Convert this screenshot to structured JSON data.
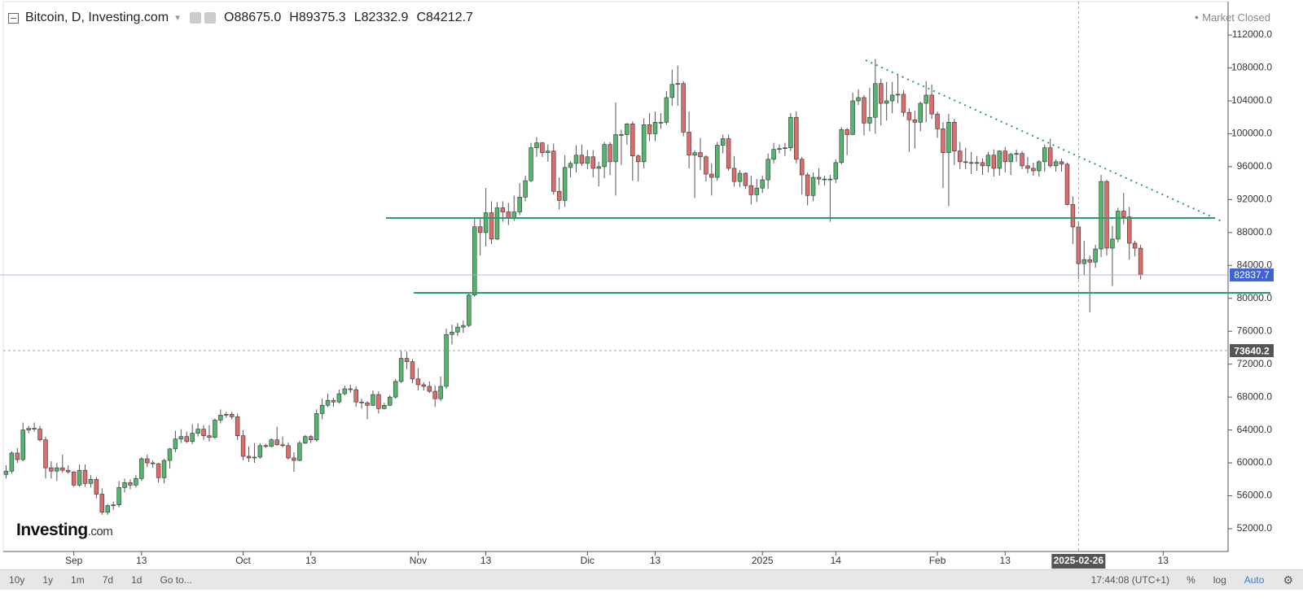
{
  "header": {
    "title": "Bitcoin, D, Investing.com",
    "ohlc": [
      {
        "key": "O",
        "value": "88675.0"
      },
      {
        "key": "H",
        "value": "89375.3"
      },
      {
        "key": "L",
        "value": "82332.9"
      },
      {
        "key": "C",
        "value": "84212.7"
      }
    ],
    "status": "Market Closed"
  },
  "logo": {
    "brand": "Investing",
    "suffix": ".com"
  },
  "toolbar": {
    "ranges": [
      "10y",
      "1y",
      "1m",
      "7d",
      "1d"
    ],
    "goto": "Go to...",
    "time": "17:44:08 (UTC+1)",
    "options": [
      "%",
      "log",
      "Auto"
    ]
  },
  "chart_data": {
    "type": "candlestick",
    "colors": {
      "up": "#52b66d",
      "down": "#e06b6b",
      "wick": "#555555"
    },
    "grid": false,
    "open": [
      58600,
      59000,
      61200,
      60400,
      64000,
      64200,
      64100,
      62800,
      59400,
      59000,
      59400,
      59100,
      58900,
      57300,
      59100,
      57500,
      58000,
      56200,
      54000,
      54800,
      54900,
      57000,
      57600,
      57300,
      58100,
      60500,
      60000,
      59900,
      58200,
      60300,
      61700,
      62900,
      63200,
      62600,
      63600,
      64100,
      63300,
      63100,
      65200,
      65800,
      65900,
      65600,
      63300,
      60800,
      60600,
      60700,
      62100,
      62000,
      62800,
      62200,
      62100,
      60600,
      60300,
      62400,
      63200,
      62800,
      66000,
      67000,
      67600,
      67400,
      68400,
      69000,
      68900,
      67400,
      67300,
      67000,
      68300,
      66600,
      67000,
      68000,
      69900,
      72700,
      72300,
      70200,
      69500,
      69300,
      68700,
      67800,
      69300,
      75600,
      75900,
      76500,
      76700,
      80400,
      88700,
      88000,
      90400,
      87200,
      91000,
      90500,
      89800,
      90500,
      92300,
      94300,
      98300,
      98900,
      97700,
      97900,
      93000,
      91900,
      95900,
      96400,
      97400,
      96400,
      97200,
      95800,
      96000,
      98700,
      96600,
      99900,
      99900,
      101200,
      97300,
      96600,
      101100,
      100000,
      101400,
      101400,
      104400,
      106000,
      106100,
      100200,
      97400,
      97700,
      97200,
      95100,
      94700,
      98600,
      99400,
      95800,
      94200,
      95200,
      93700,
      92600,
      93400,
      94400,
      96900,
      98100,
      98200,
      98300,
      102000,
      96900,
      95000,
      92500,
      94700,
      94500,
      94500,
      94500,
      96500,
      100500,
      99900,
      104000,
      104400,
      101300,
      102000,
      106100,
      103700,
      104000,
      104700,
      104800,
      102600,
      101700,
      101400,
      103700,
      104700,
      102400,
      100600,
      97700,
      101400,
      97900,
      96600,
      96500,
      96500,
      96500,
      96100,
      97400,
      95800,
      97900,
      96600,
      97500,
      97600,
      96100,
      95800,
      95500,
      96600,
      98300,
      96100,
      96600,
      96300,
      91400,
      88675,
      84212.7,
      84700,
      84400,
      86000,
      94200,
      86100,
      87200,
      90600,
      89900,
      86700,
      86100
    ],
    "high": [
      59700,
      61400,
      61800,
      64900,
      64500,
      64900,
      64500,
      63200,
      60200,
      60000,
      61000,
      59700,
      59000,
      59800,
      59800,
      58500,
      58300,
      56900,
      55000,
      55300,
      57800,
      58100,
      58000,
      58500,
      60700,
      61000,
      60300,
      60000,
      60500,
      61800,
      63900,
      64100,
      63800,
      64700,
      64800,
      64600,
      64600,
      65400,
      66500,
      66200,
      66200,
      66000,
      64000,
      62000,
      62400,
      62400,
      62300,
      63000,
      64400,
      63200,
      62500,
      61300,
      62700,
      63400,
      63400,
      66500,
      67800,
      68400,
      67900,
      68900,
      69400,
      69500,
      69300,
      67800,
      67500,
      68800,
      68700,
      67300,
      68200,
      70200,
      73600,
      73500,
      72600,
      71500,
      69800,
      69900,
      69400,
      70500,
      76300,
      76800,
      77000,
      77300,
      80600,
      89800,
      89900,
      93400,
      91800,
      91700,
      91800,
      91600,
      92500,
      94000,
      94900,
      98900,
      99600,
      99000,
      98700,
      98800,
      94700,
      97400,
      96700,
      98600,
      98700,
      98000,
      98000,
      96600,
      99000,
      99000,
      103800,
      100500,
      101300,
      101500,
      97500,
      101900,
      102500,
      102700,
      102500,
      105200,
      107800,
      108300,
      106400,
      102700,
      98000,
      99500,
      97400,
      96400,
      99000,
      99900,
      99900,
      97300,
      95600,
      95300,
      94900,
      94500,
      94900,
      97600,
      98900,
      98700,
      98900,
      102500,
      102700,
      97200,
      95300,
      95300,
      95800,
      94900,
      95000,
      96900,
      100800,
      100700,
      105000,
      105400,
      104700,
      105600,
      109100,
      106700,
      106300,
      106300,
      107100,
      105300,
      103100,
      102800,
      103900,
      106400,
      106000,
      102700,
      101400,
      102400,
      101800,
      99000,
      98300,
      97800,
      97300,
      97000,
      97800,
      98100,
      98000,
      98400,
      97700,
      98100,
      97900,
      97200,
      96500,
      96800,
      98700,
      99400,
      96900,
      97000,
      96500,
      92400,
      89375.3,
      87000,
      85200,
      86500,
      95000,
      94400,
      88800,
      91000,
      92800,
      91100,
      87000,
      86500
    ],
    "low": [
      58100,
      58700,
      60000,
      60200,
      63600,
      63800,
      62600,
      58100,
      58100,
      57800,
      58800,
      58700,
      57100,
      57100,
      57100,
      57000,
      55700,
      53700,
      53700,
      54300,
      54600,
      56400,
      56800,
      57000,
      57800,
      59500,
      59400,
      57600,
      57500,
      59300,
      61300,
      62400,
      62400,
      62300,
      63200,
      62800,
      62600,
      62900,
      64800,
      65500,
      65300,
      62800,
      60300,
      60100,
      60000,
      60500,
      61800,
      61900,
      62100,
      61900,
      60400,
      58900,
      60200,
      62300,
      62400,
      62600,
      65300,
      66800,
      66800,
      67200,
      68200,
      68500,
      66800,
      66600,
      65300,
      66900,
      66000,
      66500,
      66900,
      67800,
      69700,
      71400,
      69700,
      68800,
      68800,
      68500,
      66800,
      67500,
      69000,
      74400,
      75400,
      75800,
      76500,
      80200,
      85200,
      86300,
      86600,
      87100,
      89300,
      88900,
      89400,
      90100,
      91800,
      94100,
      97200,
      97200,
      96600,
      92600,
      90800,
      91100,
      94700,
      95300,
      96100,
      95700,
      94700,
      93600,
      94600,
      95000,
      92500,
      96200,
      98700,
      94300,
      94200,
      95800,
      99100,
      99100,
      100600,
      101100,
      103400,
      103400,
      99700,
      95800,
      92200,
      95600,
      94200,
      92500,
      94300,
      97600,
      95500,
      93600,
      93500,
      93300,
      91400,
      91700,
      92800,
      93300,
      96400,
      97600,
      97300,
      97900,
      96400,
      92600,
      91300,
      91800,
      93800,
      93700,
      89300,
      94000,
      96300,
      97400,
      99900,
      103500,
      99800,
      100300,
      100000,
      101000,
      101600,
      102500,
      103700,
      102100,
      97800,
      98200,
      100300,
      101400,
      101800,
      99500,
      93400,
      91200,
      96200,
      95700,
      95700,
      95100,
      95500,
      95000,
      95300,
      94800,
      94900,
      95300,
      95000,
      96600,
      95700,
      95200,
      94900,
      94800,
      95400,
      95900,
      95400,
      95400,
      91300,
      86600,
      82332.9,
      82800,
      78300,
      83700,
      85000,
      85200,
      81500,
      86800,
      89000,
      84700,
      85100,
      82300
    ],
    "close": [
      59000,
      61200,
      60400,
      64000,
      64200,
      64100,
      62800,
      59400,
      59000,
      59400,
      59100,
      58900,
      57300,
      59100,
      57500,
      58000,
      56200,
      54000,
      54800,
      54900,
      57000,
      57600,
      57300,
      58100,
      60500,
      60000,
      59900,
      58200,
      60300,
      61700,
      62900,
      63200,
      62600,
      63600,
      64100,
      63300,
      63100,
      65200,
      65800,
      65900,
      65600,
      63300,
      60800,
      60600,
      60700,
      62100,
      62000,
      62800,
      62200,
      62100,
      60600,
      60300,
      62400,
      63200,
      62800,
      66000,
      67000,
      67600,
      67400,
      68400,
      69000,
      68900,
      67400,
      67300,
      67000,
      68300,
      66600,
      67000,
      68000,
      69900,
      72700,
      72300,
      70200,
      69500,
      69300,
      68700,
      67800,
      69300,
      75600,
      75900,
      76500,
      76700,
      80400,
      88700,
      88000,
      90400,
      87200,
      91000,
      90500,
      89800,
      90500,
      92300,
      94300,
      98300,
      98900,
      97700,
      97900,
      93000,
      91900,
      95900,
      96400,
      97400,
      96400,
      97200,
      95800,
      96000,
      98700,
      96600,
      99900,
      99900,
      101200,
      97300,
      96600,
      101100,
      100000,
      101400,
      101400,
      104400,
      106000,
      106100,
      100200,
      97400,
      97700,
      97200,
      95100,
      94700,
      98600,
      99400,
      95800,
      94200,
      95200,
      93700,
      92600,
      93400,
      94400,
      96900,
      98100,
      98200,
      98300,
      102000,
      96900,
      95000,
      92500,
      94700,
      94500,
      94500,
      94500,
      96500,
      100500,
      99900,
      104000,
      104400,
      101300,
      102000,
      106100,
      103700,
      104000,
      104700,
      104800,
      102600,
      101700,
      101400,
      103700,
      104700,
      102400,
      100600,
      97700,
      101400,
      97900,
      96600,
      96500,
      96500,
      96500,
      96100,
      97400,
      95800,
      97900,
      96600,
      97500,
      97600,
      96100,
      95800,
      95500,
      96600,
      98300,
      96100,
      96600,
      96300,
      91400,
      88675,
      84212.7,
      84700,
      84400,
      86000,
      94200,
      86100,
      87200,
      90600,
      89900,
      86700,
      86100,
      82837.7
    ],
    "xlim": [
      -0.5,
      216.5
    ],
    "xticks": [
      {
        "value": 12,
        "label": "Sep"
      },
      {
        "value": 24,
        "label": "13"
      },
      {
        "value": 42,
        "label": "Oct"
      },
      {
        "value": 54,
        "label": "13"
      },
      {
        "value": 73,
        "label": "Nov"
      },
      {
        "value": 85,
        "label": "13"
      },
      {
        "value": 103,
        "label": "Dic"
      },
      {
        "value": 115,
        "label": "13"
      },
      {
        "value": 134,
        "label": "2025"
      },
      {
        "value": 147,
        "label": "14"
      },
      {
        "value": 165,
        "label": "Feb"
      },
      {
        "value": 177,
        "label": "13"
      },
      {
        "value": 205,
        "label": "13"
      }
    ],
    "ylim": [
      49230,
      116060
    ],
    "yticks": [
      {
        "value": 52000,
        "label": "52000.0"
      },
      {
        "value": 56000,
        "label": "56000.0"
      },
      {
        "value": 60000,
        "label": "60000.0"
      },
      {
        "value": 64000,
        "label": "64000.0"
      },
      {
        "value": 68000,
        "label": "68000.0"
      },
      {
        "value": 72000,
        "label": "72000.0"
      },
      {
        "value": 76000,
        "label": "76000.0"
      },
      {
        "value": 80000,
        "label": "80000.0"
      },
      {
        "value": 84000,
        "label": "84000.0"
      },
      {
        "value": 88000,
        "label": "88000.0"
      },
      {
        "value": 92000,
        "label": "92000.0"
      },
      {
        "value": 96000,
        "label": "96000.0"
      },
      {
        "value": 100000,
        "label": "100000.0"
      },
      {
        "value": 104000,
        "label": "104000.0"
      },
      {
        "value": 108000,
        "label": "108000.0"
      },
      {
        "value": 112000,
        "label": "112000.0"
      }
    ],
    "last_price": {
      "value": 82837.7,
      "label": "82837.7"
    },
    "crosshair": {
      "x": {
        "value": 190,
        "label": "2025-02-26"
      },
      "y": {
        "value": 73640.2,
        "label": "73640.2"
      }
    }
  }
}
